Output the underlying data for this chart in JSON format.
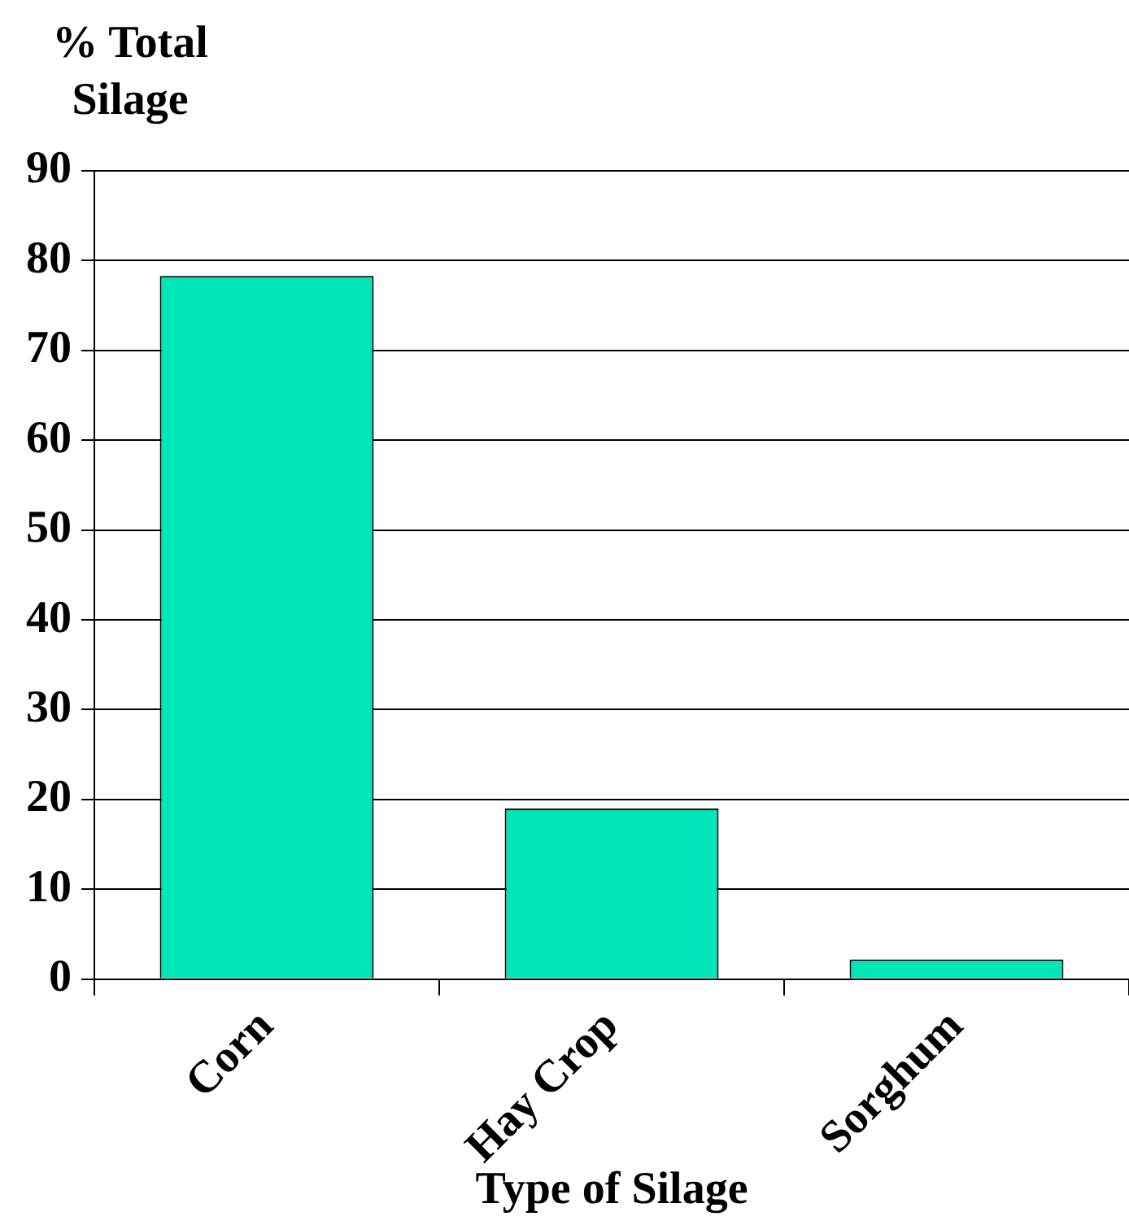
{
  "chart_data": {
    "type": "bar",
    "ylabel": "% Total Silage",
    "xlabel": "Type of Silage",
    "categories": [
      "Corn",
      "Hay Crop",
      "Sorghum"
    ],
    "values": [
      78.3,
      19.0,
      2.2
    ],
    "color": "#00e6b8",
    "ylim": [
      0,
      90
    ],
    "yticks": [
      0,
      10,
      20,
      30,
      40,
      50,
      60,
      70,
      80,
      90
    ],
    "grid": "y",
    "legend": false
  }
}
